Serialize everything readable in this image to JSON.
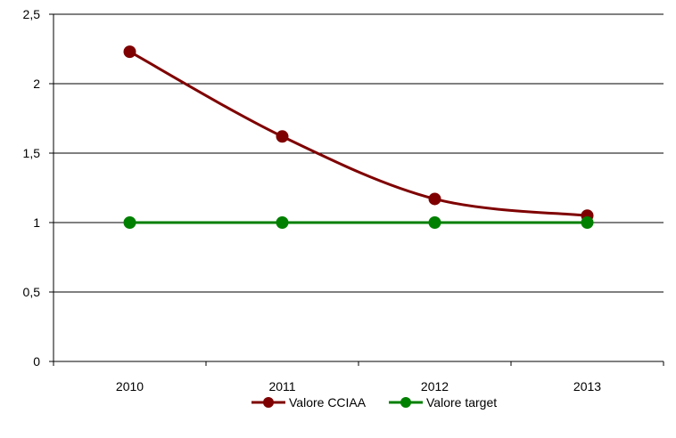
{
  "chart_data": {
    "type": "line",
    "title": "",
    "xlabel": "",
    "ylabel": "",
    "categories": [
      "2010",
      "2011",
      "2012",
      "2013"
    ],
    "ylim": [
      0,
      2.5
    ],
    "yticks": [
      0,
      0.5,
      1,
      1.5,
      2,
      2.5
    ],
    "ytick_labels": [
      "0",
      "0,5",
      "1",
      "1,5",
      "2",
      "2,5"
    ],
    "grid": "horizontal",
    "legend_position": "bottom",
    "series": [
      {
        "name": "Valore CCIAA",
        "values": [
          2.23,
          1.62,
          1.17,
          1.05
        ],
        "color": "#7f0000",
        "smooth": true
      },
      {
        "name": "Valore target",
        "values": [
          1,
          1,
          1,
          1
        ],
        "color": "#008000",
        "smooth": false
      }
    ]
  }
}
